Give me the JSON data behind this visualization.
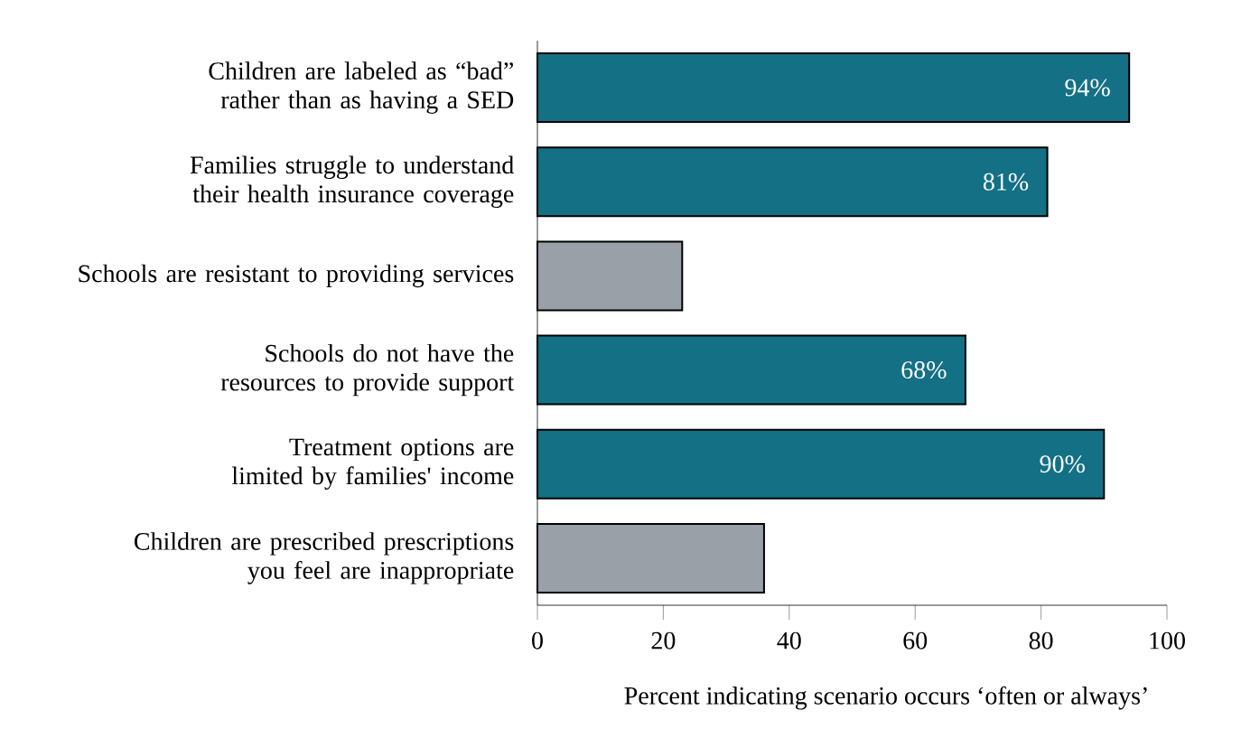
{
  "chart_data": {
    "type": "bar",
    "orientation": "horizontal",
    "categories": [
      "Children are labeled as “bad” rather than as having a SED",
      "Families struggle to understand their health insurance coverage",
      "Schools are resistant to providing services",
      "Schools do not have the resources to provide support",
      "Treatment options are limited by families' income",
      "Children are prescribed prescriptions you feel are inappropriate"
    ],
    "values": [
      94,
      81,
      23,
      68,
      90,
      36
    ],
    "value_labels": [
      "94%",
      "81%",
      null,
      "68%",
      "90%",
      null
    ],
    "colors": [
      "#147085",
      "#147085",
      "#9aa0a8",
      "#147085",
      "#147085",
      "#9aa0a8"
    ],
    "xlabel": "Percent indicating scenario occurs ‘often or always’",
    "xlim": [
      0,
      100
    ],
    "xticks": [
      0,
      20,
      40,
      60,
      80,
      100
    ],
    "grid": false
  }
}
